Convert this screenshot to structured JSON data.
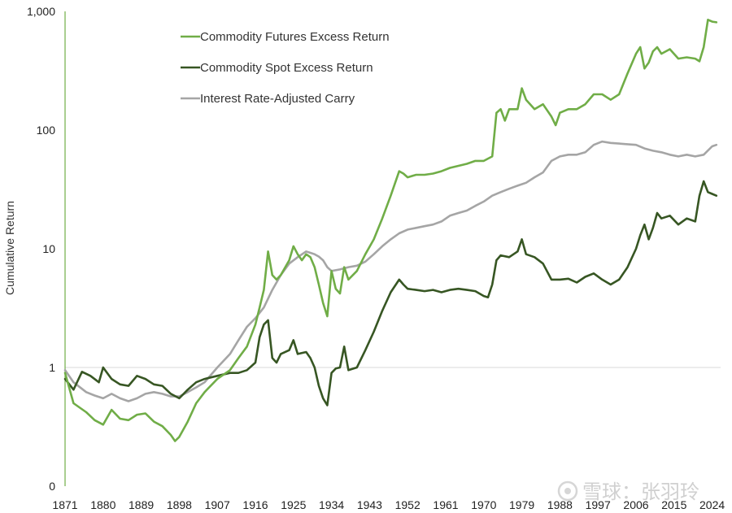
{
  "chart_data": {
    "type": "line",
    "title": "",
    "xlabel": "",
    "ylabel": "Cumulative Return",
    "y_scale": "log",
    "ylim": [
      0.1,
      1000
    ],
    "xlim": [
      1871,
      2026
    ],
    "y_ticks": [
      {
        "value": 1000,
        "label": "1,000"
      },
      {
        "value": 100,
        "label": "100"
      },
      {
        "value": 10,
        "label": "10"
      },
      {
        "value": 1,
        "label": "1"
      },
      {
        "value": 0.1,
        "label": "0"
      }
    ],
    "x_ticks": [
      1871,
      1880,
      1889,
      1898,
      1907,
      1916,
      1925,
      1934,
      1943,
      1952,
      1961,
      1970,
      1979,
      1988,
      1997,
      2006,
      2015,
      2024
    ],
    "reference_line_y": 1,
    "legend_position": "top-left",
    "series": [
      {
        "name": "Commodity Futures Excess Return",
        "color": "#70ad47",
        "x": [
          1871,
          1873,
          1876,
          1878,
          1880,
          1882,
          1884,
          1886,
          1888,
          1890,
          1892,
          1894,
          1896,
          1897,
          1898,
          1900,
          1902,
          1904,
          1907,
          1910,
          1912,
          1914,
          1916,
          1917,
          1918,
          1919,
          1920,
          1921,
          1922,
          1924,
          1925,
          1926,
          1927,
          1928,
          1929,
          1930,
          1931,
          1932,
          1933,
          1934,
          1935,
          1936,
          1937,
          1938,
          1940,
          1942,
          1944,
          1946,
          1948,
          1950,
          1951,
          1952,
          1954,
          1956,
          1958,
          1960,
          1962,
          1964,
          1966,
          1968,
          1970,
          1972,
          1973,
          1974,
          1975,
          1976,
          1978,
          1979,
          1980,
          1982,
          1984,
          1986,
          1987,
          1988,
          1990,
          1992,
          1994,
          1996,
          1998,
          2000,
          2002,
          2004,
          2006,
          2007,
          2008,
          2009,
          2010,
          2011,
          2012,
          2014,
          2016,
          2018,
          2020,
          2021,
          2022,
          2023,
          2024,
          2025
        ],
        "y": [
          0.9,
          0.5,
          0.42,
          0.36,
          0.33,
          0.44,
          0.37,
          0.36,
          0.4,
          0.41,
          0.35,
          0.32,
          0.27,
          0.24,
          0.26,
          0.35,
          0.5,
          0.62,
          0.8,
          0.95,
          1.2,
          1.5,
          2.3,
          3.2,
          4.5,
          9.5,
          6,
          5.5,
          6,
          8,
          10.5,
          9,
          8,
          9,
          8.5,
          7,
          5,
          3.5,
          2.7,
          6.5,
          4.6,
          4.2,
          7,
          5.5,
          6.5,
          9,
          12,
          18,
          28,
          45,
          43,
          40,
          42,
          42,
          43,
          45,
          48,
          50,
          52,
          55,
          55,
          60,
          140,
          150,
          120,
          150,
          150,
          225,
          180,
          150,
          165,
          130,
          110,
          140,
          150,
          150,
          165,
          200,
          200,
          180,
          200,
          300,
          440,
          500,
          330,
          370,
          460,
          500,
          440,
          480,
          400,
          410,
          400,
          380,
          500,
          850,
          820,
          810
        ]
      },
      {
        "name": "Commodity Spot Excess Return",
        "color": "#375623",
        "x": [
          1871,
          1873,
          1875,
          1877,
          1879,
          1880,
          1882,
          1884,
          1886,
          1888,
          1890,
          1892,
          1894,
          1896,
          1898,
          1900,
          1902,
          1904,
          1907,
          1910,
          1912,
          1914,
          1916,
          1917,
          1918,
          1919,
          1920,
          1921,
          1922,
          1924,
          1925,
          1926,
          1928,
          1929,
          1930,
          1931,
          1932,
          1933,
          1934,
          1935,
          1936,
          1937,
          1938,
          1940,
          1942,
          1944,
          1946,
          1948,
          1950,
          1951,
          1952,
          1954,
          1956,
          1958,
          1960,
          1962,
          1964,
          1966,
          1968,
          1970,
          1971,
          1972,
          1973,
          1974,
          1976,
          1978,
          1979,
          1980,
          1982,
          1984,
          1986,
          1988,
          1990,
          1992,
          1994,
          1996,
          1998,
          2000,
          2002,
          2004,
          2006,
          2007,
          2008,
          2009,
          2010,
          2011,
          2012,
          2014,
          2016,
          2018,
          2020,
          2021,
          2022,
          2023,
          2024,
          2025
        ],
        "y": [
          0.8,
          0.65,
          0.92,
          0.85,
          0.75,
          1.0,
          0.8,
          0.72,
          0.7,
          0.85,
          0.8,
          0.72,
          0.7,
          0.6,
          0.55,
          0.65,
          0.75,
          0.8,
          0.85,
          0.9,
          0.9,
          0.95,
          1.1,
          1.8,
          2.3,
          2.5,
          1.2,
          1.1,
          1.3,
          1.4,
          1.7,
          1.3,
          1.35,
          1.2,
          1.0,
          0.7,
          0.55,
          0.48,
          0.9,
          0.98,
          1.0,
          1.5,
          0.95,
          1.0,
          1.4,
          2.0,
          3.0,
          4.3,
          5.5,
          5.0,
          4.6,
          4.5,
          4.4,
          4.5,
          4.3,
          4.5,
          4.6,
          4.5,
          4.4,
          4.0,
          3.9,
          5.0,
          8.0,
          8.8,
          8.5,
          9.5,
          12,
          9,
          8.5,
          7.5,
          5.5,
          5.5,
          5.6,
          5.2,
          5.8,
          6.2,
          5.5,
          5.0,
          5.5,
          7.0,
          10,
          13,
          16,
          12,
          15,
          20,
          18,
          19,
          16,
          18,
          17,
          28,
          37,
          30,
          29,
          28
        ]
      },
      {
        "name": "Interest Rate-Adjusted Carry",
        "color": "#a5a5a5",
        "x": [
          1871,
          1873,
          1876,
          1878,
          1880,
          1882,
          1884,
          1886,
          1888,
          1890,
          1892,
          1894,
          1896,
          1898,
          1900,
          1902,
          1904,
          1907,
          1910,
          1912,
          1914,
          1916,
          1918,
          1920,
          1922,
          1924,
          1926,
          1928,
          1930,
          1931,
          1932,
          1933,
          1934,
          1936,
          1938,
          1940,
          1942,
          1944,
          1946,
          1948,
          1950,
          1952,
          1954,
          1956,
          1958,
          1960,
          1962,
          1964,
          1966,
          1968,
          1970,
          1972,
          1974,
          1976,
          1978,
          1980,
          1982,
          1984,
          1986,
          1988,
          1990,
          1992,
          1994,
          1996,
          1998,
          2000,
          2002,
          2004,
          2006,
          2008,
          2010,
          2012,
          2014,
          2016,
          2018,
          2020,
          2022,
          2024,
          2025
        ],
        "y": [
          0.95,
          0.75,
          0.62,
          0.58,
          0.55,
          0.6,
          0.55,
          0.52,
          0.55,
          0.6,
          0.62,
          0.6,
          0.57,
          0.57,
          0.62,
          0.68,
          0.75,
          1.0,
          1.3,
          1.7,
          2.2,
          2.6,
          3.2,
          4.5,
          6,
          7.5,
          8.5,
          9.5,
          9,
          8.6,
          8.0,
          7.0,
          6.5,
          6.7,
          7.0,
          7.2,
          7.8,
          9,
          10.5,
          12,
          13.5,
          14.5,
          15,
          15.5,
          16,
          17,
          19,
          20,
          21,
          23,
          25,
          28,
          30,
          32,
          34,
          36,
          40,
          44,
          55,
          60,
          62,
          62,
          65,
          75,
          80,
          78,
          77,
          76,
          75,
          70,
          67,
          65,
          62,
          60,
          62,
          60,
          62,
          73,
          75
        ]
      }
    ]
  },
  "watermark": {
    "text": "雪球：张羽玲",
    "color": "#cccccc"
  }
}
